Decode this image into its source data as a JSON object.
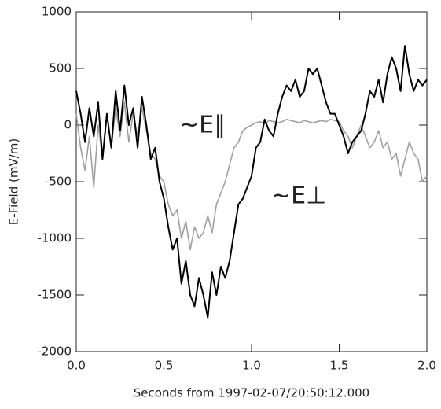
{
  "chart_data": {
    "type": "line",
    "xlabel": "Seconds from 1997-02-07/20:50:12.000",
    "ylabel": "E-Field  (mV/m)",
    "x": [
      0,
      0.025,
      0.05,
      0.075,
      0.1,
      0.125,
      0.15,
      0.175,
      0.2,
      0.225,
      0.25,
      0.275,
      0.3,
      0.325,
      0.35,
      0.375,
      0.4,
      0.425,
      0.45,
      0.475,
      0.5,
      0.525,
      0.55,
      0.575,
      0.6,
      0.625,
      0.65,
      0.675,
      0.7,
      0.725,
      0.75,
      0.775,
      0.8,
      0.825,
      0.85,
      0.875,
      0.9,
      0.925,
      0.95,
      0.975,
      1.0,
      1.025,
      1.05,
      1.075,
      1.1,
      1.125,
      1.15,
      1.175,
      1.2,
      1.225,
      1.25,
      1.275,
      1.3,
      1.325,
      1.35,
      1.375,
      1.4,
      1.425,
      1.45,
      1.475,
      1.5,
      1.525,
      1.55,
      1.575,
      1.6,
      1.625,
      1.65,
      1.675,
      1.7,
      1.725,
      1.75,
      1.775,
      1.8,
      1.825,
      1.85,
      1.875,
      1.9,
      1.925,
      1.95,
      1.975,
      2.0
    ],
    "series": [
      {
        "name": "~E∥",
        "color": "#a0a0a0",
        "values": [
          100,
          -200,
          -400,
          -100,
          -550,
          0,
          -300,
          100,
          -200,
          150,
          -100,
          200,
          -150,
          100,
          -100,
          150,
          -50,
          -250,
          -300,
          -450,
          -500,
          -700,
          -800,
          -750,
          -1000,
          -850,
          -1100,
          -900,
          -1000,
          -950,
          -800,
          -950,
          -700,
          -600,
          -500,
          -350,
          -200,
          -150,
          -50,
          -20,
          0,
          20,
          30,
          10,
          40,
          30,
          20,
          30,
          50,
          40,
          30,
          20,
          40,
          30,
          20,
          30,
          40,
          30,
          50,
          40,
          30,
          -50,
          -100,
          -200,
          -100,
          0,
          -100,
          -200,
          -150,
          -50,
          -200,
          -150,
          -300,
          -250,
          -450,
          -300,
          -150,
          -250,
          -300,
          -500,
          -450
        ]
      },
      {
        "name": "~E⊥",
        "color": "#000000",
        "values": [
          300,
          100,
          -150,
          150,
          -100,
          200,
          -300,
          100,
          -200,
          300,
          -50,
          350,
          0,
          150,
          -200,
          250,
          0,
          -300,
          -200,
          -500,
          -650,
          -900,
          -1100,
          -1000,
          -1400,
          -1200,
          -1500,
          -1600,
          -1350,
          -1500,
          -1700,
          -1300,
          -1500,
          -1250,
          -1350,
          -1200,
          -950,
          -700,
          -650,
          -550,
          -450,
          -200,
          -150,
          50,
          -50,
          -100,
          100,
          250,
          350,
          300,
          400,
          250,
          300,
          500,
          450,
          500,
          350,
          200,
          100,
          100,
          0,
          -100,
          -250,
          -150,
          -100,
          -50,
          100,
          300,
          250,
          400,
          200,
          450,
          600,
          500,
          300,
          700,
          450,
          300,
          400,
          350,
          400
        ]
      }
    ],
    "xlim": [
      0,
      2
    ],
    "ylim": [
      -2000,
      1000
    ],
    "xticks": [
      {
        "value": 0,
        "label": "0.0"
      },
      0.5,
      {
        "value": 1,
        "label": "1.0"
      },
      1.5,
      {
        "value": 2,
        "label": "2.0"
      }
    ],
    "yticks": [
      -2000,
      -1500,
      -1000,
      -500,
      0,
      500,
      1000
    ]
  }
}
